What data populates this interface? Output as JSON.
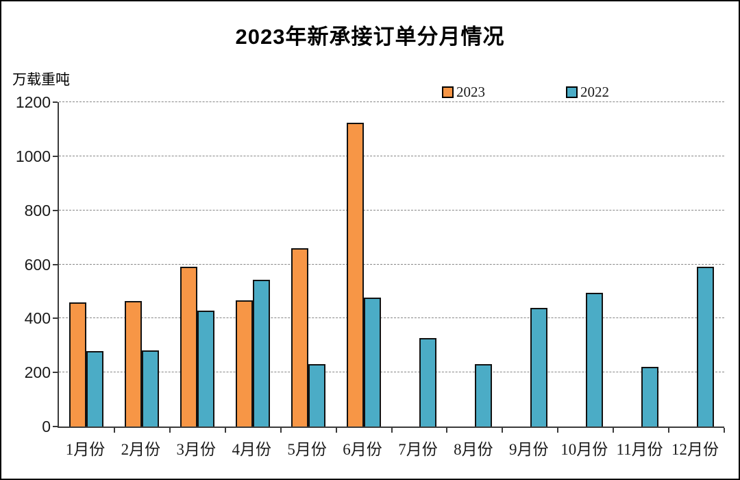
{
  "window": {
    "background": "#ffffff",
    "frame_border": "#000000"
  },
  "chart_data": {
    "type": "bar",
    "title": "2023年新承接订单分月情况",
    "ylabel_unit": "万载重吨",
    "categories": [
      "1月份",
      "2月份",
      "3月份",
      "4月份",
      "5月份",
      "6月份",
      "7月份",
      "8月份",
      "9月份",
      "10月份",
      "11月份",
      "12月份"
    ],
    "series": [
      {
        "name": "2023",
        "color": "#F79646",
        "values": [
          460,
          464,
          591,
          466,
          659,
          1124,
          null,
          null,
          null,
          null,
          null,
          null
        ]
      },
      {
        "name": "2022",
        "color": "#4BACC6",
        "values": [
          280,
          282,
          428,
          544,
          230,
          478,
          327,
          232,
          439,
          495,
          220,
          591
        ]
      }
    ],
    "ylim": [
      0,
      1200
    ],
    "ytick_step": 200,
    "yticks": [
      0,
      200,
      400,
      600,
      800,
      1000,
      1200
    ],
    "grid": "horizontal-dashed",
    "grid_color": "#858585",
    "axis_color": "#3a3a3a",
    "bar_border_color": "#111111",
    "legend_position": "top-inside",
    "legend_labels": [
      "2023",
      "2022"
    ]
  }
}
